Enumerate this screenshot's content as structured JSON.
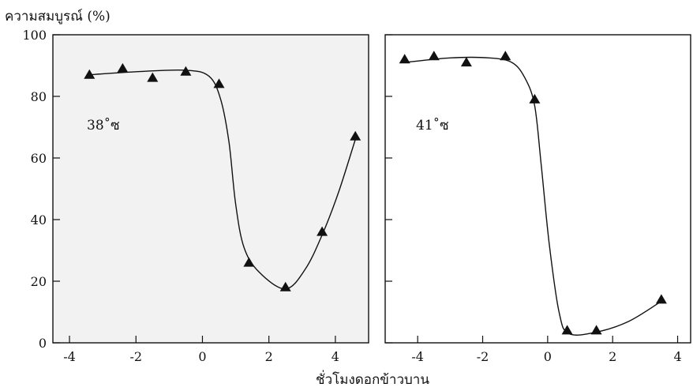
{
  "chart_data": {
    "type": "line",
    "ylabel": "ความสมบูรณ์ (%)",
    "xlabel": "ชั่วโมงดอกข้าวบาน",
    "ylim": [
      0,
      100
    ],
    "yticks": [
      "0",
      "20",
      "40",
      "60",
      "80",
      "100"
    ],
    "colors": {
      "panel1_bg": "#f2f2f2",
      "panel2_bg": "#ffffff",
      "ink": "#111111"
    },
    "panels": [
      {
        "label": "38˚ซ",
        "xlim": [
          -4.5,
          5
        ],
        "xticks": [
          {
            "v": -4,
            "t": "-4"
          },
          {
            "v": -2,
            "t": "-2"
          },
          {
            "v": 0,
            "t": "0"
          },
          {
            "v": 2,
            "t": "2"
          },
          {
            "v": 4,
            "t": "4"
          }
        ],
        "points": [
          {
            "x": -3.4,
            "y": 87
          },
          {
            "x": -2.4,
            "y": 89
          },
          {
            "x": -1.5,
            "y": 86
          },
          {
            "x": -0.5,
            "y": 88
          },
          {
            "x": 0.5,
            "y": 84
          },
          {
            "x": 1.4,
            "y": 26
          },
          {
            "x": 2.5,
            "y": 18
          },
          {
            "x": 3.6,
            "y": 36
          },
          {
            "x": 4.6,
            "y": 67
          }
        ],
        "curve": [
          {
            "x": -3.4,
            "y": 87
          },
          {
            "x": -2,
            "y": 88
          },
          {
            "x": -0.5,
            "y": 88.5
          },
          {
            "x": 0.2,
            "y": 86.5
          },
          {
            "x": 0.55,
            "y": 79
          },
          {
            "x": 0.8,
            "y": 65
          },
          {
            "x": 1.0,
            "y": 45
          },
          {
            "x": 1.25,
            "y": 31
          },
          {
            "x": 1.7,
            "y": 23
          },
          {
            "x": 2.5,
            "y": 17.5
          },
          {
            "x": 3.1,
            "y": 24
          },
          {
            "x": 3.6,
            "y": 35
          },
          {
            "x": 4.1,
            "y": 49
          },
          {
            "x": 4.6,
            "y": 66
          }
        ]
      },
      {
        "label": "41˚ซ",
        "xlim": [
          -5,
          4.4
        ],
        "xticks": [
          {
            "v": -4,
            "t": "-4"
          },
          {
            "v": -2,
            "t": "-2"
          },
          {
            "v": 0,
            "t": "0"
          },
          {
            "v": 2,
            "t": "2"
          },
          {
            "v": 4,
            "t": "4"
          }
        ],
        "points": [
          {
            "x": -4.4,
            "y": 92
          },
          {
            "x": -3.5,
            "y": 93
          },
          {
            "x": -2.5,
            "y": 91
          },
          {
            "x": -1.3,
            "y": 93
          },
          {
            "x": -0.4,
            "y": 79
          },
          {
            "x": 0.6,
            "y": 4
          },
          {
            "x": 1.5,
            "y": 4
          },
          {
            "x": 3.5,
            "y": 14
          }
        ],
        "curve": [
          {
            "x": -4.4,
            "y": 91
          },
          {
            "x": -3,
            "y": 92.5
          },
          {
            "x": -1.8,
            "y": 92.5
          },
          {
            "x": -1.1,
            "y": 91
          },
          {
            "x": -0.7,
            "y": 86
          },
          {
            "x": -0.4,
            "y": 77
          },
          {
            "x": -0.2,
            "y": 58
          },
          {
            "x": 0.05,
            "y": 32
          },
          {
            "x": 0.35,
            "y": 10
          },
          {
            "x": 0.65,
            "y": 3
          },
          {
            "x": 1.5,
            "y": 3.5
          },
          {
            "x": 2.5,
            "y": 7
          },
          {
            "x": 3.5,
            "y": 13.5
          }
        ]
      }
    ]
  }
}
